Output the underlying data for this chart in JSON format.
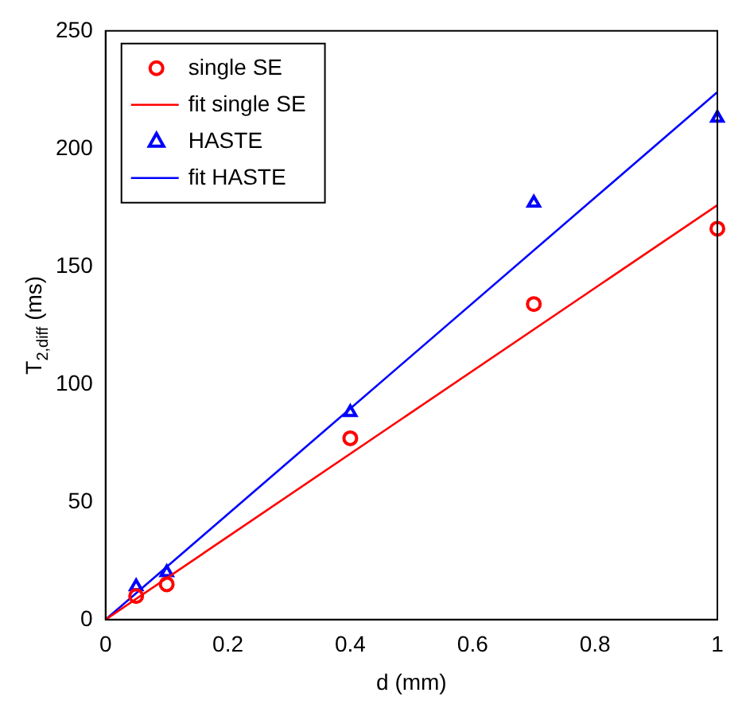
{
  "chart_data": {
    "type": "scatter",
    "xlabel": "d (mm)",
    "ylabel": "T$_{2,diff}$ (ms)",
    "xlim": [
      0,
      1
    ],
    "xticks": [
      0,
      0.2,
      0.4,
      0.6,
      0.8,
      1
    ],
    "ylim": [
      0,
      250
    ],
    "yticks": [
      0,
      50,
      100,
      150,
      200,
      250
    ],
    "grid": false,
    "legend": "top left",
    "series": [
      {
        "name": "single SE",
        "marker": "circle",
        "color": "#ff0000",
        "x": [
          0.05,
          0.1,
          0.4,
          0.7,
          1.0
        ],
        "values": [
          10,
          15,
          77,
          134,
          166
        ]
      },
      {
        "name": "fit single SE",
        "type": "line",
        "marker": "none",
        "color": "#ff0000",
        "x": [
          0,
          1
        ],
        "values": [
          0,
          176
        ]
      },
      {
        "name": "HASTE",
        "marker": "triangle",
        "color": "#0000ff",
        "x": [
          0.05,
          0.1,
          0.4,
          0.7,
          1.0
        ],
        "values": [
          14,
          20,
          88,
          177,
          213
        ]
      },
      {
        "name": "fit HASTE",
        "type": "line",
        "marker": "none",
        "color": "#0000ff",
        "x": [
          0,
          1
        ],
        "values": [
          0,
          224
        ]
      }
    ]
  }
}
